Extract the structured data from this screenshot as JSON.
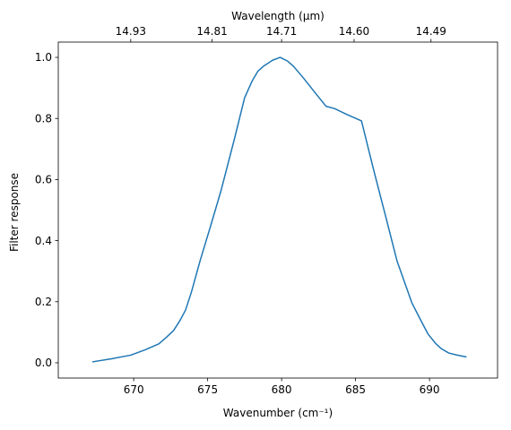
{
  "chart_data": {
    "type": "line",
    "title": "",
    "xlabel": "Wavenumber (cm⁻¹)",
    "ylabel": "Filter response",
    "top_xlabel": "Wavelength (μm)",
    "xlim": [
      664.9,
      694.6
    ],
    "ylim": [
      -0.05,
      1.05
    ],
    "grid": false,
    "legend": "none",
    "line_color": "#1f77b4",
    "x_ticks": [
      670,
      675,
      680,
      685,
      690
    ],
    "x_tick_labels": [
      "670",
      "675",
      "680",
      "685",
      "690"
    ],
    "y_ticks": [
      0.0,
      0.2,
      0.4,
      0.6,
      0.8,
      1.0
    ],
    "y_tick_labels": [
      "0.0",
      "0.2",
      "0.4",
      "0.6",
      "0.8",
      "1.0"
    ],
    "top_ticks": [
      669.8,
      675.3,
      680.0,
      684.9,
      690.1
    ],
    "top_tick_labels": [
      "14.93",
      "14.81",
      "14.71",
      "14.60",
      "14.49"
    ],
    "series": [
      {
        "x": [
          667.2,
          668.5,
          669.8,
          670.8,
          671.7,
          672.2,
          672.7,
          673.1,
          673.5,
          673.9,
          674.5,
          675.2,
          675.9,
          676.8,
          677.5,
          678.0,
          678.4,
          678.8,
          679.4,
          679.9,
          680.4,
          680.8,
          681.5,
          682.4,
          683.0,
          683.6,
          684.5,
          685.4,
          686.2,
          687.0,
          687.8,
          688.8,
          689.4,
          689.9,
          690.4,
          690.8,
          691.3,
          691.8,
          692.5
        ],
        "y": [
          0.003,
          0.013,
          0.025,
          0.043,
          0.062,
          0.083,
          0.106,
          0.136,
          0.172,
          0.231,
          0.336,
          0.448,
          0.563,
          0.731,
          0.868,
          0.922,
          0.955,
          0.972,
          0.991,
          1.0,
          0.988,
          0.971,
          0.931,
          0.876,
          0.84,
          0.832,
          0.811,
          0.792,
          0.636,
          0.486,
          0.334,
          0.197,
          0.14,
          0.094,
          0.064,
          0.046,
          0.032,
          0.026,
          0.019
        ]
      }
    ]
  }
}
